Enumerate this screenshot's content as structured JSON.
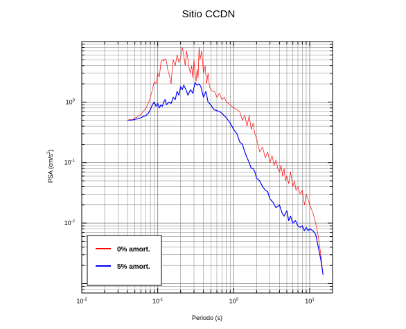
{
  "chart_data": {
    "type": "line",
    "title": "Sitio CCDN",
    "xlabel": "Periodo (s)",
    "ylabel_parts": [
      "PSA (cm/s",
      "2",
      ")"
    ],
    "xscale": "log",
    "yscale": "log",
    "xlim": [
      0.01,
      20
    ],
    "ylim": [
      0.0007,
      10
    ],
    "grid": true,
    "legend_position": "bottom-left",
    "x_ticks": [
      {
        "value": 0.01,
        "base": "10",
        "exp": "-2"
      },
      {
        "value": 0.1,
        "base": "10",
        "exp": "-1"
      },
      {
        "value": 1,
        "base": "10",
        "exp": "0"
      },
      {
        "value": 10,
        "base": "10",
        "exp": "1"
      }
    ],
    "y_ticks": [
      {
        "value": 1,
        "base": "10",
        "exp": "0"
      },
      {
        "value": 0.1,
        "base": "10",
        "exp": "-1"
      },
      {
        "value": 0.01,
        "base": "10",
        "exp": "-2"
      }
    ],
    "series": [
      {
        "name": "0% amort.",
        "color": "#ff0000",
        "stroke_weight": "thin",
        "x": [
          0.04,
          0.043,
          0.047,
          0.05,
          0.053,
          0.057,
          0.06,
          0.064,
          0.068,
          0.072,
          0.076,
          0.08,
          0.085,
          0.09,
          0.095,
          0.1,
          0.105,
          0.11,
          0.115,
          0.12,
          0.125,
          0.13,
          0.135,
          0.14,
          0.145,
          0.15,
          0.155,
          0.16,
          0.17,
          0.18,
          0.19,
          0.2,
          0.21,
          0.22,
          0.23,
          0.24,
          0.25,
          0.26,
          0.27,
          0.28,
          0.29,
          0.3,
          0.31,
          0.32,
          0.33,
          0.34,
          0.35,
          0.36,
          0.38,
          0.4,
          0.42,
          0.44,
          0.46,
          0.48,
          0.5,
          0.53,
          0.56,
          0.6,
          0.65,
          0.7,
          0.75,
          0.8,
          0.9,
          1.0,
          1.1,
          1.2,
          1.3,
          1.4,
          1.5,
          1.6,
          1.7,
          1.8,
          1.9,
          2.0,
          2.2,
          2.4,
          2.6,
          2.8,
          3.0,
          3.2,
          3.4,
          3.6,
          3.8,
          4.0,
          4.2,
          4.4,
          4.6,
          4.8,
          5.0,
          5.3,
          5.6,
          6.0,
          6.3,
          6.6,
          7.0,
          7.5,
          8.0,
          8.5,
          9.0,
          9.5,
          10,
          11,
          12,
          13,
          14,
          15
        ],
        "y": [
          0.5,
          0.52,
          0.51,
          0.55,
          0.56,
          0.6,
          0.62,
          0.7,
          0.75,
          0.85,
          1.0,
          1.2,
          1.6,
          2.2,
          2.0,
          3.0,
          2.6,
          4.5,
          5.0,
          4.8,
          5.2,
          4.8,
          3.5,
          3.0,
          2.5,
          2.0,
          3.5,
          5.0,
          4.0,
          6.0,
          4.5,
          5.5,
          8.0,
          6.0,
          4.0,
          7.0,
          5.0,
          3.5,
          3.0,
          4.0,
          2.5,
          5.0,
          3.0,
          2.2,
          3.5,
          2.5,
          8.0,
          5.0,
          7.0,
          3.0,
          4.0,
          2.0,
          3.0,
          1.8,
          1.6,
          1.5,
          1.5,
          1.2,
          1.4,
          1.1,
          1.2,
          1.0,
          0.9,
          0.8,
          0.75,
          0.7,
          0.5,
          0.6,
          0.4,
          0.6,
          0.35,
          0.45,
          0.3,
          0.25,
          0.15,
          0.18,
          0.12,
          0.15,
          0.1,
          0.13,
          0.09,
          0.11,
          0.08,
          0.07,
          0.09,
          0.06,
          0.08,
          0.05,
          0.06,
          0.045,
          0.07,
          0.04,
          0.05,
          0.035,
          0.04,
          0.03,
          0.035,
          0.02,
          0.03,
          0.025,
          0.02,
          0.015,
          0.01,
          0.006,
          0.003,
          0.0014
        ]
      },
      {
        "name": "5% amort.",
        "color": "#0000ff",
        "stroke_weight": "thick",
        "x": [
          0.04,
          0.045,
          0.05,
          0.055,
          0.06,
          0.065,
          0.07,
          0.075,
          0.08,
          0.085,
          0.09,
          0.095,
          0.1,
          0.105,
          0.11,
          0.115,
          0.12,
          0.125,
          0.13,
          0.14,
          0.15,
          0.16,
          0.17,
          0.18,
          0.19,
          0.2,
          0.21,
          0.22,
          0.23,
          0.24,
          0.25,
          0.27,
          0.29,
          0.31,
          0.33,
          0.35,
          0.37,
          0.4,
          0.43,
          0.46,
          0.5,
          0.55,
          0.6,
          0.65,
          0.7,
          0.8,
          0.9,
          1.0,
          1.1,
          1.2,
          1.3,
          1.4,
          1.5,
          1.6,
          1.7,
          1.8,
          1.9,
          2.0,
          2.2,
          2.4,
          2.6,
          2.8,
          3.0,
          3.3,
          3.6,
          4.0,
          4.3,
          4.6,
          5.0,
          5.3,
          5.6,
          6.0,
          6.5,
          7.0,
          7.5,
          8.0,
          8.5,
          9.0,
          9.5,
          10,
          11,
          12,
          13,
          14,
          15
        ],
        "y": [
          0.5,
          0.5,
          0.52,
          0.53,
          0.55,
          0.58,
          0.6,
          0.65,
          0.75,
          0.9,
          1.0,
          0.85,
          0.95,
          0.8,
          0.9,
          0.85,
          1.0,
          1.1,
          0.9,
          1.0,
          0.95,
          1.2,
          1.1,
          1.5,
          1.3,
          1.8,
          1.6,
          1.9,
          1.7,
          1.5,
          1.3,
          1.6,
          1.4,
          2.1,
          1.9,
          2.0,
          1.8,
          1.2,
          1.5,
          1.0,
          0.9,
          0.75,
          0.72,
          0.7,
          0.65,
          0.55,
          0.45,
          0.35,
          0.3,
          0.22,
          0.2,
          0.15,
          0.12,
          0.1,
          0.08,
          0.08,
          0.07,
          0.055,
          0.05,
          0.04,
          0.035,
          0.033,
          0.025,
          0.022,
          0.018,
          0.02,
          0.015,
          0.013,
          0.016,
          0.011,
          0.013,
          0.01,
          0.011,
          0.009,
          0.0085,
          0.009,
          0.0075,
          0.0085,
          0.0075,
          0.008,
          0.0075,
          0.0065,
          0.004,
          0.0025,
          0.0014
        ]
      }
    ]
  }
}
